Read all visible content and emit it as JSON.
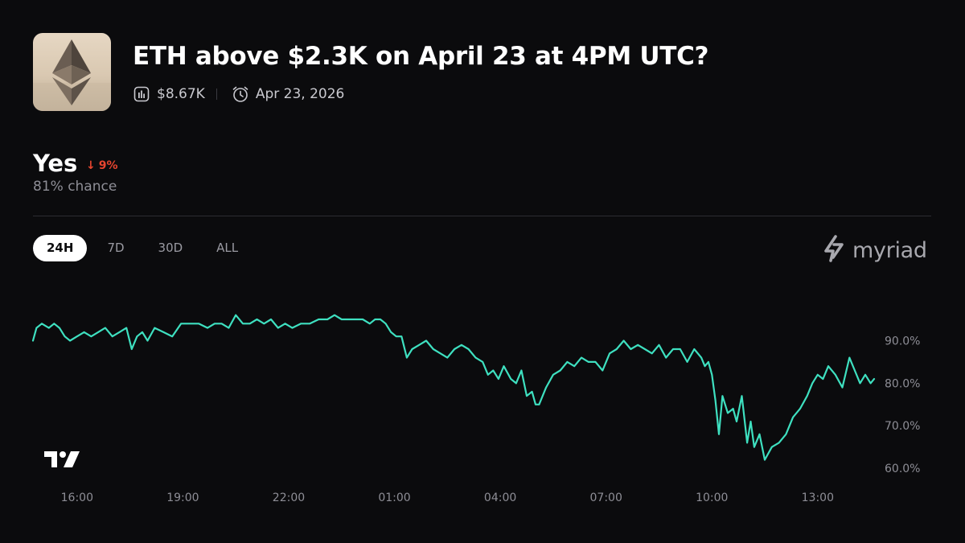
{
  "market": {
    "title": "ETH above $2.3K on April 23 at 4PM UTC?",
    "volume": "$8.67K",
    "end_date": "Apr 23, 2026"
  },
  "outcome": {
    "label": "Yes",
    "change": "9%",
    "change_direction": "down",
    "chance": "81% chance"
  },
  "ranges": [
    "24H",
    "7D",
    "30D",
    "ALL"
  ],
  "active_range": "24H",
  "brand": "myriad",
  "colors": {
    "background": "#0b0b0d",
    "line": "#3ee0c0",
    "negative": "#e7452f",
    "muted": "#8e8e96"
  },
  "icons": [
    "ethereum-logo",
    "bar-chart-icon",
    "alarm-clock-icon",
    "arrow-down-icon",
    "myriad-logo-icon",
    "tradingview-logo"
  ],
  "chart_data": {
    "type": "line",
    "ylim": [
      57,
      102
    ],
    "xlim": [
      14.75,
      38.6
    ],
    "x_ticks": [
      16,
      19,
      22,
      25,
      28,
      31,
      34,
      37
    ],
    "x_tick_labels": [
      "16:00",
      "19:00",
      "22:00",
      "01:00",
      "04:00",
      "07:00",
      "10:00",
      "13:00"
    ],
    "y_ticks": [
      90,
      80,
      70,
      60
    ],
    "y_tick_labels": [
      "90.0%",
      "80.0%",
      "70.0%",
      "60.0%"
    ],
    "series": [
      {
        "x": [
          14.75,
          14.85,
          15.0,
          15.2,
          15.35,
          15.5,
          15.65,
          15.8,
          16.0,
          16.2,
          16.4,
          16.6,
          16.8,
          17.0,
          17.2,
          17.4,
          17.55,
          17.7,
          17.85,
          18.0,
          18.2,
          18.45,
          18.7,
          18.95,
          19.2,
          19.45,
          19.7,
          19.9,
          20.1,
          20.3,
          20.5,
          20.7,
          20.9,
          21.1,
          21.3,
          21.5,
          21.7,
          21.9,
          22.1,
          22.35,
          22.6,
          22.85,
          23.1,
          23.3,
          23.5,
          23.7,
          23.9,
          24.1,
          24.3,
          24.45,
          24.6,
          24.75,
          24.9,
          25.05,
          25.2,
          25.35,
          25.5,
          25.7,
          25.9,
          26.1,
          26.3,
          26.5,
          26.7,
          26.9,
          27.1,
          27.3,
          27.5,
          27.65,
          27.8,
          27.95,
          28.1,
          28.3,
          28.45,
          28.6,
          28.75,
          28.9,
          29.0,
          29.1,
          29.3,
          29.5,
          29.7,
          29.9,
          30.1,
          30.3,
          30.5,
          30.7,
          30.9,
          31.1,
          31.3,
          31.5,
          31.7,
          31.9,
          32.1,
          32.3,
          32.5,
          32.7,
          32.9,
          33.1,
          33.3,
          33.5,
          33.7,
          33.8,
          33.9,
          34.0,
          34.1,
          34.2,
          34.3,
          34.45,
          34.6,
          34.7,
          34.85,
          35.0,
          35.1,
          35.2,
          35.35,
          35.5,
          35.7,
          35.9,
          36.1,
          36.3,
          36.5,
          36.7,
          36.85,
          37.0,
          37.15,
          37.3,
          37.5,
          37.7,
          37.9,
          38.05,
          38.2,
          38.35,
          38.5,
          38.6
        ],
        "y": [
          90,
          93,
          94,
          93,
          94,
          93,
          91,
          90,
          91,
          92,
          91,
          92,
          93,
          91,
          92,
          93,
          88,
          91,
          92,
          90,
          93,
          92,
          91,
          94,
          94,
          94,
          93,
          94,
          94,
          93,
          96,
          94,
          94,
          95,
          94,
          95,
          93,
          94,
          93,
          94,
          94,
          95,
          95,
          96,
          95,
          95,
          95,
          95,
          94,
          95,
          95,
          94,
          92,
          91,
          91,
          86,
          88,
          89,
          90,
          88,
          87,
          86,
          88,
          89,
          88,
          86,
          85,
          82,
          83,
          81,
          84,
          81,
          80,
          83,
          77,
          78,
          75,
          75,
          79,
          82,
          83,
          85,
          84,
          86,
          85,
          85,
          83,
          87,
          88,
          90,
          88,
          89,
          88,
          87,
          89,
          86,
          88,
          88,
          85,
          88,
          86,
          84,
          85,
          82,
          76,
          68,
          77,
          73,
          74,
          71,
          77,
          66,
          71,
          65,
          68,
          62,
          65,
          66,
          68,
          72,
          74,
          77,
          80,
          82,
          81,
          84,
          82,
          79,
          86,
          83,
          80,
          82,
          80,
          81
        ]
      }
    ]
  }
}
